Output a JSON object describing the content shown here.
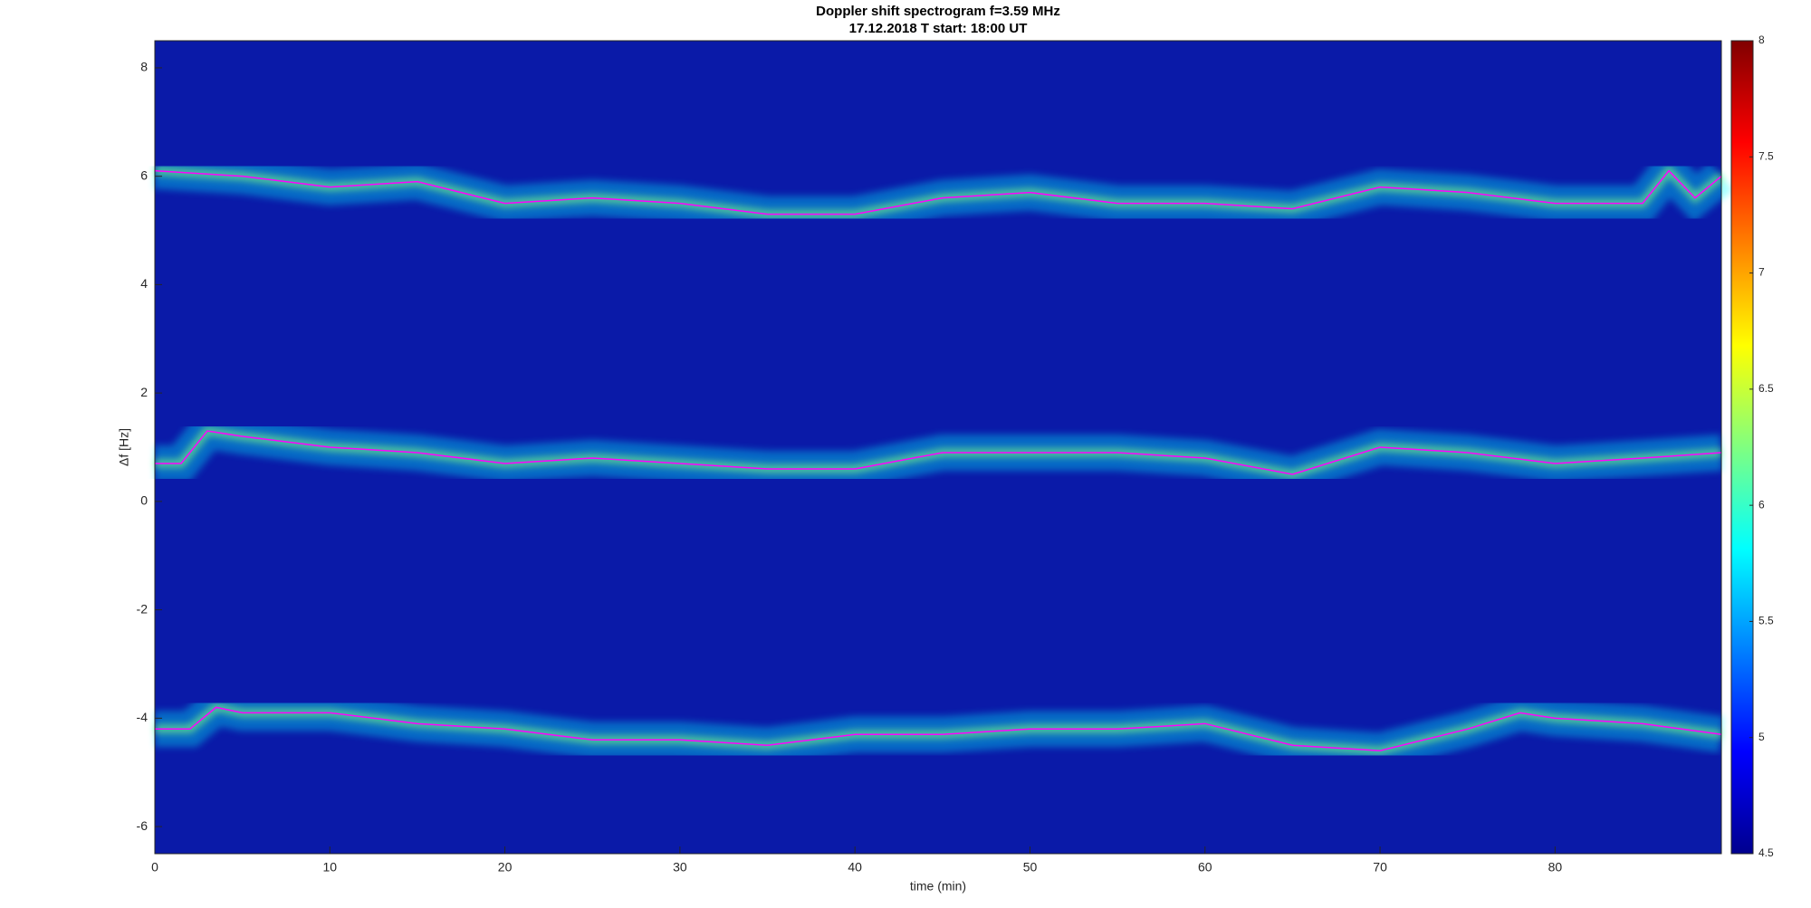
{
  "chart_data": {
    "type": "spectrogram",
    "title": "Doppler shift spectrogram f=3.59 MHz",
    "subtitle": "17.12.2018   T start: 18:00 UT",
    "x_label": "time (min)",
    "y_label": "Δf [Hz]",
    "xlim": [
      0,
      89.5
    ],
    "xticks": [
      0,
      10,
      20,
      30,
      40,
      50,
      60,
      70,
      80
    ],
    "ylim": [
      -6.5,
      8.5
    ],
    "yticks": [
      -6,
      -4,
      -2,
      0,
      2,
      4,
      6,
      8
    ],
    "clim": [
      4.5,
      8
    ],
    "cticks": [
      4.5,
      5,
      5.5,
      6,
      6.5,
      7,
      7.5,
      8
    ],
    "colormap": [
      "#00008f",
      "#0000ff",
      "#0080ff",
      "#00ffff",
      "#80ff80",
      "#ffff00",
      "#ff8000",
      "#ff0000",
      "#800000"
    ],
    "background_color": "#0a1aa8",
    "series": [
      {
        "color": "#ff00ff",
        "x": [
          0,
          5,
          10,
          15,
          20,
          25,
          30,
          35,
          40,
          45,
          50,
          55,
          60,
          65,
          70,
          75,
          80,
          85,
          86.5,
          88,
          89.5
        ],
        "values": [
          6.1,
          6.0,
          5.8,
          5.9,
          5.5,
          5.6,
          5.5,
          5.3,
          5.3,
          5.6,
          5.7,
          5.5,
          5.5,
          5.4,
          5.8,
          5.7,
          5.5,
          5.5,
          6.1,
          5.6,
          6.0
        ]
      },
      {
        "color": "#ff00ff",
        "x": [
          0,
          1.5,
          3,
          5,
          10,
          15,
          20,
          25,
          30,
          35,
          40,
          45,
          50,
          55,
          60,
          65,
          70,
          75,
          80,
          85,
          89.5
        ],
        "values": [
          0.7,
          0.7,
          1.3,
          1.2,
          1.0,
          0.9,
          0.7,
          0.8,
          0.7,
          0.6,
          0.6,
          0.9,
          0.9,
          0.9,
          0.8,
          0.5,
          1.0,
          0.9,
          0.7,
          0.8,
          0.9
        ]
      },
      {
        "color": "#ff00ff",
        "x": [
          0,
          2,
          3.5,
          5,
          10,
          15,
          20,
          25,
          30,
          35,
          40,
          45,
          50,
          55,
          60,
          65,
          70,
          75,
          78,
          80,
          85,
          89.5
        ],
        "values": [
          -4.2,
          -4.2,
          -3.8,
          -3.9,
          -3.9,
          -4.1,
          -4.2,
          -4.4,
          -4.4,
          -4.5,
          -4.3,
          -4.3,
          -4.2,
          -4.2,
          -4.1,
          -4.5,
          -4.6,
          -4.2,
          -3.9,
          -4.0,
          -4.1,
          -4.3
        ]
      }
    ]
  }
}
